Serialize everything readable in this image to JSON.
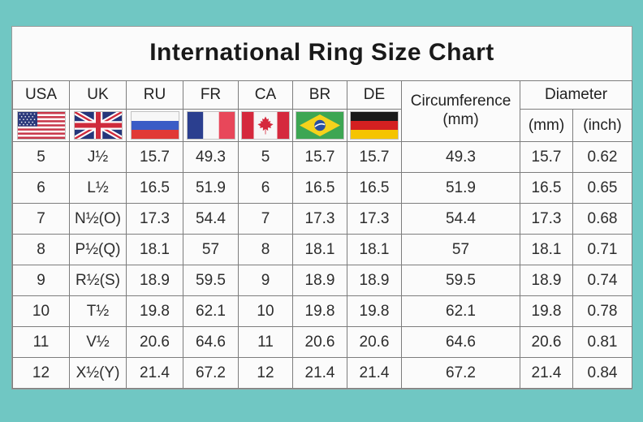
{
  "title": "International Ring Size Chart",
  "colors": {
    "page_background": "#70c7c3",
    "sheet_background": "#fbfbfb",
    "grid_border": "#7d7d7d",
    "text": "#2d2d2d"
  },
  "header": {
    "columns": [
      "USA",
      "UK",
      "RU",
      "FR",
      "CA",
      "BR",
      "DE"
    ],
    "flag_icons": [
      "usa-flag-icon",
      "uk-flag-icon",
      "russia-flag-icon",
      "france-flag-icon",
      "canada-flag-icon",
      "brazil-flag-icon",
      "germany-flag-icon"
    ],
    "circumference": {
      "line1": "Circumference",
      "line2": "(mm)"
    },
    "diameter": {
      "label": "Diameter",
      "sub": [
        "(mm)",
        "(inch)"
      ]
    }
  },
  "table": {
    "column_keys": [
      "usa",
      "uk",
      "ru",
      "fr",
      "ca",
      "br",
      "de",
      "circumference-mm",
      "diameter-mm",
      "diameter-inch"
    ],
    "rows": [
      [
        "5",
        "J½",
        "15.7",
        "49.3",
        "5",
        "15.7",
        "15.7",
        "49.3",
        "15.7",
        "0.62"
      ],
      [
        "6",
        "L½",
        "16.5",
        "51.9",
        "6",
        "16.5",
        "16.5",
        "51.9",
        "16.5",
        "0.65"
      ],
      [
        "7",
        "N½(O)",
        "17.3",
        "54.4",
        "7",
        "17.3",
        "17.3",
        "54.4",
        "17.3",
        "0.68"
      ],
      [
        "8",
        "P½(Q)",
        "18.1",
        "57",
        "8",
        "18.1",
        "18.1",
        "57",
        "18.1",
        "0.71"
      ],
      [
        "9",
        "R½(S)",
        "18.9",
        "59.5",
        "9",
        "18.9",
        "18.9",
        "59.5",
        "18.9",
        "0.74"
      ],
      [
        "10",
        "T½",
        "19.8",
        "62.1",
        "10",
        "19.8",
        "19.8",
        "62.1",
        "19.8",
        "0.78"
      ],
      [
        "11",
        "V½",
        "20.6",
        "64.6",
        "11",
        "20.6",
        "20.6",
        "64.6",
        "20.6",
        "0.81"
      ],
      [
        "12",
        "X½(Y)",
        "21.4",
        "67.2",
        "12",
        "21.4",
        "21.4",
        "67.2",
        "21.4",
        "0.84"
      ]
    ]
  }
}
